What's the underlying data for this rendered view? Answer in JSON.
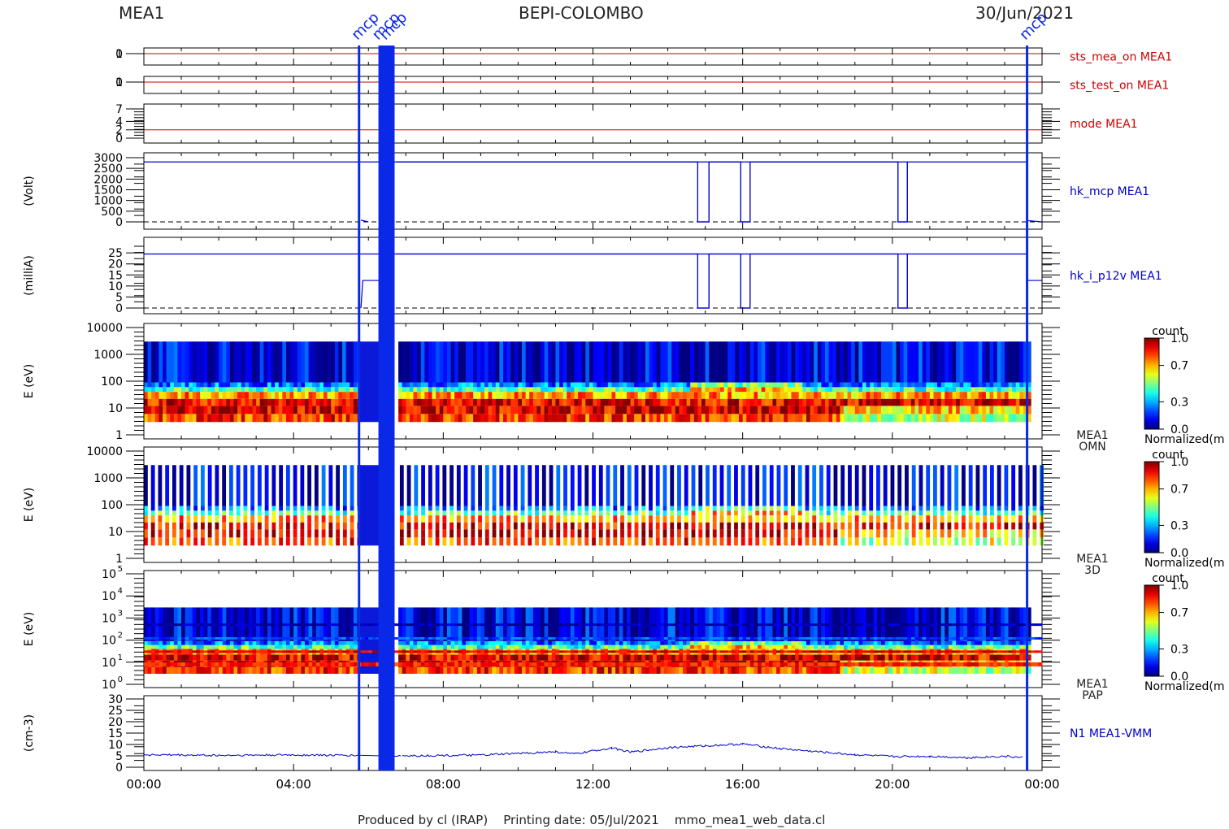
{
  "header": {
    "left": "MEA1",
    "center": "BEPI-COLOMBO",
    "right": "30/Jun/2021"
  },
  "footer": "Produced by cl (IRAP)    Printing date: 05/Jul/2021    mmo_mea1_web_data.cl",
  "colors": {
    "red": "#cc0000",
    "blue": "#0000cc",
    "event": "#0a28e8",
    "hidden_band": "#0a1ad8"
  },
  "chart_data": {
    "type": "line",
    "x_ticks": [
      "00:00",
      "04:00",
      "08:00",
      "12:00",
      "16:00",
      "20:00",
      "00:00"
    ],
    "x_range_hours": [
      0,
      24
    ],
    "event_labels": [
      {
        "text": "mcp",
        "hour": 5.75
      },
      {
        "text": "mcp",
        "hour": 6.3
      },
      {
        "text": "mcp",
        "hour": 6.5
      },
      {
        "text": "mcp",
        "hour": 23.6
      }
    ],
    "blank_intervals_hours": [
      [
        5.75,
        6.3
      ],
      [
        6.7,
        6.75
      ]
    ],
    "panels": [
      {
        "id": "sts_mea_on",
        "label": "sts_mea_on MEA1",
        "ylim": [
          0,
          1
        ],
        "ticks": [
          "1",
          "0"
        ],
        "tick_vals": [
          1,
          0
        ],
        "line_value": 1,
        "color": "red"
      },
      {
        "id": "sts_test_on",
        "label": "sts_test_on MEA1",
        "ylim": [
          0,
          1
        ],
        "ticks": [
          "1",
          "0"
        ],
        "tick_vals": [
          1,
          0
        ],
        "line_value": 0,
        "color": "red"
      },
      {
        "id": "mode",
        "label": "mode MEA1",
        "ylim": [
          0,
          7
        ],
        "ticks": [
          "7",
          "4",
          "2",
          "0"
        ],
        "tick_vals": [
          7,
          4,
          2,
          0
        ],
        "line_value": 2,
        "color": "red"
      },
      {
        "id": "hk_mcp",
        "label": "hk_mcp MEA1",
        "ylabel": "(Volt)",
        "ylim": [
          0,
          3000
        ],
        "ticks": [
          "3000",
          "2500",
          "2000",
          "1500",
          "1000",
          "500",
          "0"
        ],
        "tick_vals": [
          3000,
          2500,
          2000,
          1500,
          1000,
          500,
          0
        ],
        "base_value": 2800,
        "drop_intervals": [
          [
            14.8,
            15.1
          ],
          [
            15.95,
            16.2
          ],
          [
            20.15,
            20.4
          ]
        ],
        "color": "blue"
      },
      {
        "id": "hk_i_p12v",
        "label": "hk_i_p12v MEA1",
        "ylabel": "(milliA)",
        "ylim": [
          0,
          28
        ],
        "ticks": [
          "25",
          "20",
          "15",
          "10",
          "5",
          "0"
        ],
        "tick_vals": [
          25,
          20,
          15,
          10,
          5,
          0
        ],
        "base_value": 24.5,
        "off_value": 12.5,
        "drop_intervals": [
          [
            14.8,
            15.1
          ],
          [
            15.95,
            16.2
          ],
          [
            20.15,
            20.4
          ]
        ],
        "color": "blue"
      },
      {
        "id": "omn",
        "label": [
          "MEA1",
          "OMN"
        ],
        "ylabel": "E (eV)",
        "type": "heatmap",
        "ylim_log": [
          1,
          10000
        ],
        "ticks": [
          "10000",
          "1000",
          "100",
          "10",
          "1"
        ],
        "tick_vals": [
          10000,
          1000,
          100,
          10,
          1
        ],
        "colorbar": {
          "title": "count",
          "ticks": [
            "1.0",
            "0.7",
            "0.3",
            "0.0"
          ],
          "label": "Normalized(m"
        }
      },
      {
        "id": "3d",
        "label": [
          "MEA1",
          "3D"
        ],
        "ylabel": "E (eV)",
        "type": "heatmap",
        "ylim_log": [
          1,
          10000
        ],
        "ticks": [
          "10000",
          "1000",
          "100",
          "10",
          "1"
        ],
        "tick_vals": [
          10000,
          1000,
          100,
          10,
          1
        ],
        "colorbar": {
          "title": "count",
          "ticks": [
            "1.0",
            "0.7",
            "0.3",
            "0.0"
          ],
          "label": "Normalized(m"
        }
      },
      {
        "id": "pap",
        "label": [
          "MEA1",
          "PAP"
        ],
        "ylabel": "E (eV)",
        "type": "heatmap",
        "ylim_log": [
          1,
          100000
        ],
        "ticks": [
          "10",
          "10",
          "10",
          "10",
          "10",
          "10"
        ],
        "tick_exponents": [
          "5",
          "4",
          "3",
          "2",
          "1",
          "0"
        ],
        "tick_vals": [
          100000,
          10000,
          1000,
          100,
          10,
          1
        ],
        "colorbar": {
          "title": "count",
          "ticks": [
            "1.0",
            "0.7",
            "0.3",
            "0.0"
          ],
          "label": "Normalized(m"
        }
      },
      {
        "id": "n1",
        "label": "N1 MEA1-VMM",
        "ylabel": "(cm-3)",
        "ylim": [
          0,
          30
        ],
        "ticks": [
          "30",
          "25",
          "20",
          "15",
          "10",
          "5",
          "0"
        ],
        "tick_vals": [
          30,
          25,
          20,
          15,
          10,
          5,
          0
        ],
        "series_x": [
          0,
          2,
          4,
          5.5,
          6.9,
          9,
          11,
          11.5,
          12.5,
          13,
          14,
          15,
          16,
          17,
          18,
          19,
          20,
          21,
          22,
          23,
          23.5
        ],
        "series_y": [
          5.5,
          5.2,
          5.4,
          5.2,
          5.0,
          5.3,
          6.8,
          5.8,
          8.5,
          6.6,
          8.6,
          9.4,
          10.2,
          8.2,
          6.8,
          5.5,
          4.7,
          4.8,
          4.2,
          4.8,
          4.2
        ],
        "color": "blue"
      }
    ]
  }
}
